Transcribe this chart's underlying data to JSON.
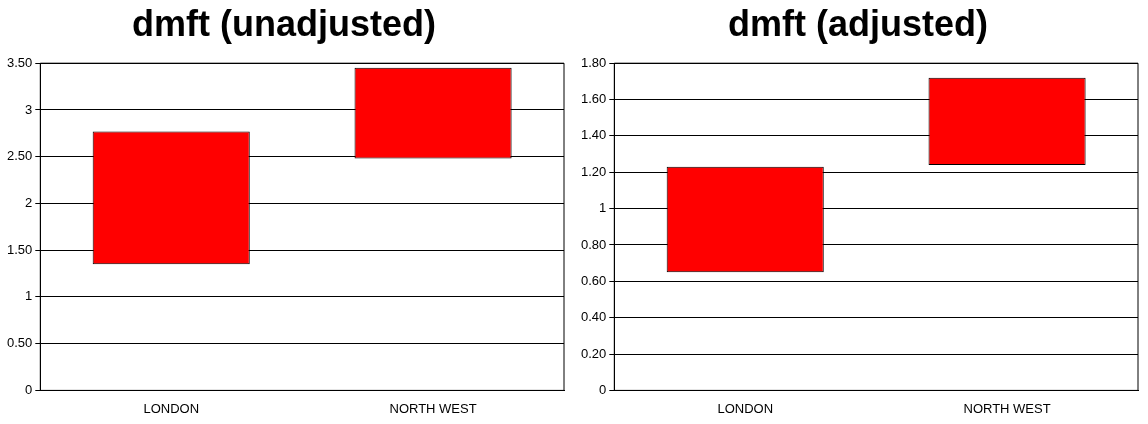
{
  "chart_data": [
    {
      "type": "bar",
      "title": "dmft (unadjusted)",
      "categories": [
        "LONDON",
        "NORTH WEST"
      ],
      "values": [
        1.42,
        0.97
      ],
      "base": [
        1.35,
        2.48
      ],
      "color": "#ff0000",
      "ylim": [
        0,
        3.5
      ],
      "yticks": [
        0,
        {
          "value": 0.5,
          "label": "0.50"
        },
        1,
        {
          "value": 1.5,
          "label": "1.50"
        },
        2,
        {
          "value": 2.5,
          "label": "2.50"
        },
        3,
        {
          "value": 3.5,
          "label": "3.50"
        }
      ],
      "grid": "y",
      "legend": false
    },
    {
      "type": "bar",
      "title": "dmft (adjusted)",
      "categories": [
        "LONDON",
        "NORTH WEST"
      ],
      "values": [
        0.58,
        0.48
      ],
      "base": [
        0.65,
        1.24
      ],
      "color": "#ff0000",
      "ylim": [
        0,
        1.8
      ],
      "yticks": [
        0,
        {
          "value": 0.2,
          "label": "0.20"
        },
        {
          "value": 0.4,
          "label": "0.40"
        },
        {
          "value": 0.6,
          "label": "0.60"
        },
        {
          "value": 0.8,
          "label": "0.80"
        },
        1,
        {
          "value": 1.2,
          "label": "1.20"
        },
        {
          "value": 1.4,
          "label": "1.40"
        },
        {
          "value": 1.6,
          "label": "1.60"
        },
        {
          "value": 1.8,
          "label": "1.80"
        }
      ],
      "grid": "y",
      "legend": false
    }
  ]
}
